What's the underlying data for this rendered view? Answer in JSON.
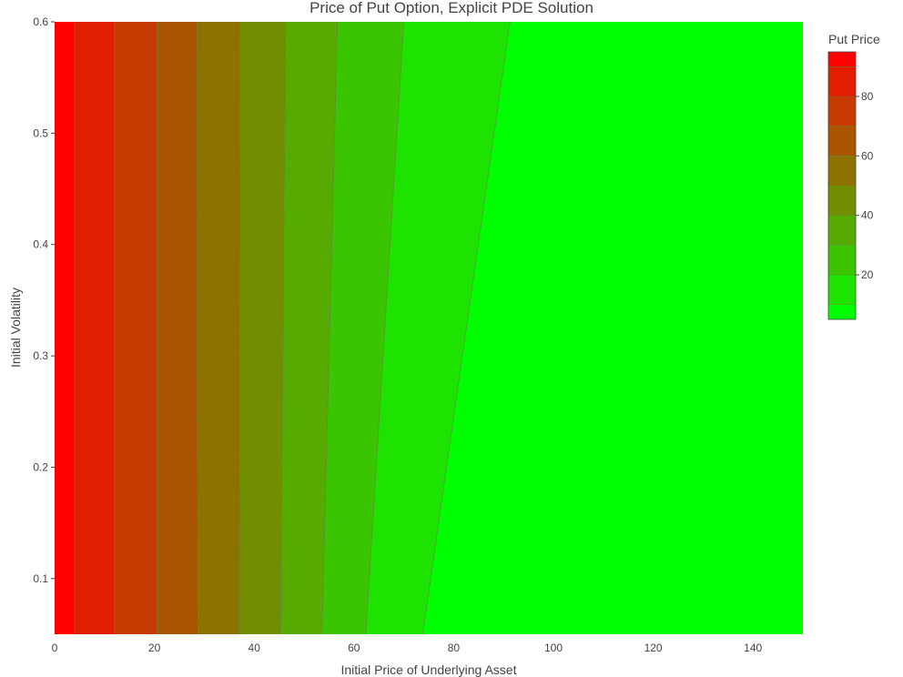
{
  "chart_data": {
    "type": "heatmap",
    "subtype": "contour",
    "title": "Price of Put Option, Explicit PDE Solution",
    "xlabel": "Initial Price of Underlying Asset",
    "ylabel": "Initial Volatility",
    "xlim": [
      0,
      150
    ],
    "ylim": [
      0.05,
      0.6
    ],
    "xticks": [
      0,
      20,
      40,
      60,
      80,
      100,
      120,
      140
    ],
    "yticks": [
      0.1,
      0.2,
      0.3,
      0.4,
      0.5,
      0.6
    ],
    "colorbar": {
      "title": "Put Price",
      "range": [
        5,
        95
      ],
      "ticks": [
        20,
        40,
        60,
        80
      ],
      "levels": [
        5,
        10,
        20,
        30,
        40,
        50,
        60,
        70,
        80,
        90,
        95
      ],
      "colors": [
        "#00ff00",
        "#1ee300",
        "#3ac500",
        "#56aa00",
        "#728e00",
        "#8e7200",
        "#aa5600",
        "#c63a00",
        "#e21e00",
        "#ff0000"
      ],
      "position": "right"
    },
    "contour_boundaries": [
      {
        "level": 90,
        "x_at_low_vol": 4,
        "x_at_high_vol": 4
      },
      {
        "level": 80,
        "x_at_low_vol": 12,
        "x_at_high_vol": 12
      },
      {
        "level": 70,
        "x_at_low_vol": 20.5,
        "x_at_high_vol": 20.5
      },
      {
        "level": 60,
        "x_at_low_vol": 28.7,
        "x_at_high_vol": 28.5
      },
      {
        "level": 50,
        "x_at_low_vol": 37,
        "x_at_high_vol": 37.2
      },
      {
        "level": 40,
        "x_at_low_vol": 45.3,
        "x_at_high_vol": 46.3
      },
      {
        "level": 30,
        "x_at_low_vol": 53.6,
        "x_at_high_vol": 56.7
      },
      {
        "level": 20,
        "x_at_low_vol": 62.4,
        "x_at_high_vol": 70
      },
      {
        "level": 10,
        "x_at_low_vol": 73.8,
        "x_at_high_vol": 91.3
      }
    ],
    "grid": false
  }
}
